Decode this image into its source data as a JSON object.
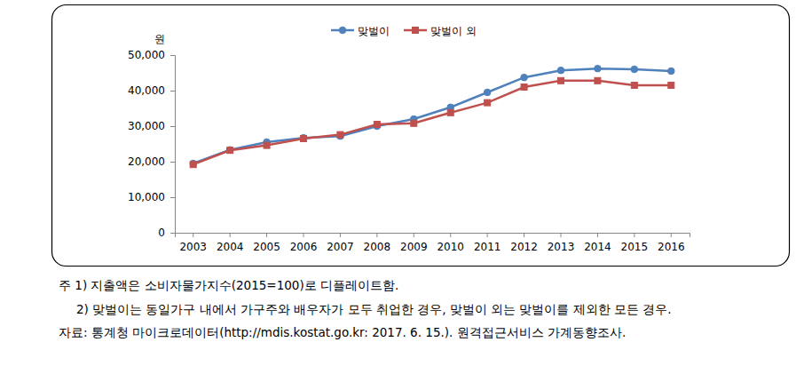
{
  "chart_data": {
    "type": "line",
    "y_label": "원",
    "categories": [
      "2003",
      "2004",
      "2005",
      "2006",
      "2007",
      "2008",
      "2009",
      "2010",
      "2011",
      "2012",
      "2013",
      "2014",
      "2015",
      "2016"
    ],
    "series": [
      {
        "name": "맞벌이",
        "color": "#4f81bd",
        "marker": "circle",
        "values": [
          19500,
          23300,
          25500,
          26700,
          27200,
          30000,
          32000,
          35300,
          39500,
          43700,
          45700,
          46200,
          46000,
          45500
        ]
      },
      {
        "name": "맞벌이 외",
        "color": "#c0504d",
        "marker": "square",
        "values": [
          19200,
          23200,
          24600,
          26500,
          27600,
          30500,
          30800,
          33800,
          36600,
          41000,
          42800,
          42800,
          41500,
          41500
        ]
      }
    ],
    "ylim": [
      0,
      50000
    ],
    "yticks": [
      0,
      {
        "value": 10000,
        "label": "10,000"
      },
      {
        "value": 20000,
        "label": "20,000"
      },
      {
        "value": 30000,
        "label": "30,000"
      },
      {
        "value": 40000,
        "label": "40,000"
      },
      {
        "value": 50000,
        "label": "50,000"
      }
    ],
    "grid": false,
    "legend": "top",
    "annotations": [
      "주 1) 지출액은 소비자물가지수(2015=100)로 디플레이트함.",
      "2) 맞벌이는 동일가구 내에서 가구주와 배우자가 모두 취업한 경우, 맞벌이 외는 맞벌이를 제외한 모든 경우.",
      "자료: 통계청 마이크로데이터(http://mdis.kostat.go.kr: 2017. 6. 15.). 원격접근서비스 가계동향조사."
    ]
  }
}
